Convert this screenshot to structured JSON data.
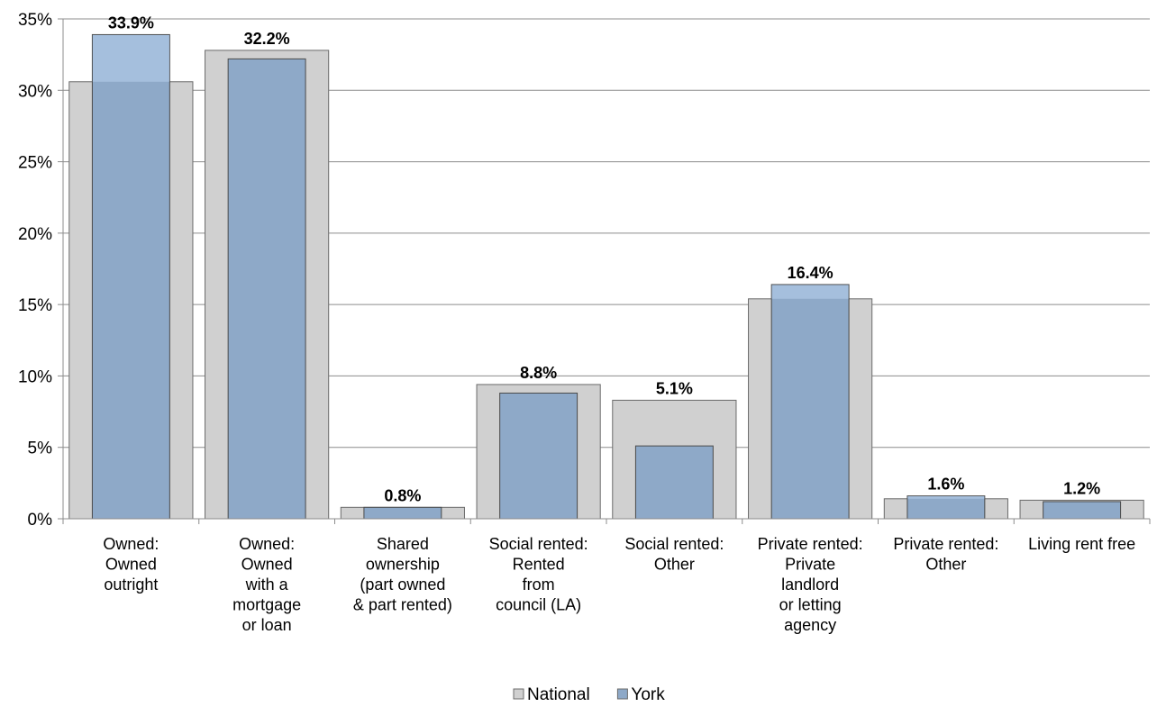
{
  "chart_data": {
    "type": "bar",
    "categories": [
      [
        "Owned:",
        "Owned",
        "outright"
      ],
      [
        "Owned:",
        "Owned",
        "with a",
        "mortgage",
        "or loan"
      ],
      [
        "Shared",
        "ownership",
        "(part owned",
        "& part rented)"
      ],
      [
        "Social rented:",
        "Rented",
        "from",
        "council (LA)"
      ],
      [
        "Social rented:",
        "Other"
      ],
      [
        "Private rented:",
        "Private",
        "landlord",
        "or letting",
        "agency"
      ],
      [
        "Private rented:",
        "Other"
      ],
      [
        "Living rent free"
      ]
    ],
    "series": [
      {
        "name": "National",
        "values": [
          30.6,
          32.8,
          0.8,
          9.4,
          8.3,
          15.4,
          1.4,
          1.3
        ],
        "color": "#d0d0d0"
      },
      {
        "name": "York",
        "values": [
          33.9,
          32.2,
          0.8,
          8.8,
          5.1,
          16.4,
          1.6,
          1.2
        ],
        "color": "#8ea9c8",
        "data_labels": [
          "33.9%",
          "32.2%",
          "0.8%",
          "8.8%",
          "5.1%",
          "16.4%",
          "1.6%",
          "1.2%"
        ]
      }
    ],
    "overlap_color": "#a5bfdd",
    "ylim": [
      0,
      35
    ],
    "yticks": [
      "0%",
      "5%",
      "10%",
      "15%",
      "20%",
      "25%",
      "30%",
      "35%"
    ],
    "grid": true,
    "legend_position": "bottom-center",
    "title": "",
    "xlabel": "",
    "ylabel": ""
  }
}
